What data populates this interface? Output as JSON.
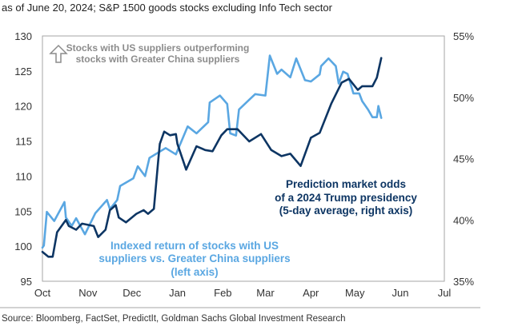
{
  "chart_data": {
    "type": "line",
    "title": "as of June 20, 2024; S&P 1500 goods stocks excluding Info Tech sector",
    "source": "Source: Bloomberg, FactSet, PredictIt, Goldman Sachs Global Investment Research",
    "x_unit": "days since Oct 1, 2023",
    "xlim": [
      0,
      274
    ],
    "x_ticks": [
      {
        "label": "Oct",
        "day": 0
      },
      {
        "label": "Nov",
        "day": 31
      },
      {
        "label": "Dec",
        "day": 61
      },
      {
        "label": "Jan",
        "day": 92
      },
      {
        "label": "Feb",
        "day": 123
      },
      {
        "label": "Mar",
        "day": 152
      },
      {
        "label": "Apr",
        "day": 183
      },
      {
        "label": "May",
        "day": 213
      },
      {
        "label": "Jun",
        "day": 244
      },
      {
        "label": "Jul",
        "day": 274
      }
    ],
    "left_axis": {
      "ylim": [
        95,
        130
      ],
      "ticks": [
        "95",
        "100",
        "105",
        "110",
        "115",
        "120",
        "125",
        "130"
      ],
      "tick_values": [
        95,
        100,
        105,
        110,
        115,
        120,
        125,
        130
      ]
    },
    "right_axis": {
      "ylim": [
        35,
        55
      ],
      "ticks": [
        "35%",
        "40%",
        "45%",
        "50%",
        "55%"
      ],
      "tick_values": [
        35,
        40,
        45,
        50,
        55
      ]
    },
    "grid": false,
    "annotations": {
      "up_arrow": [
        "Stocks with US suppliers outperforming",
        "stocks with Greater China suppliers"
      ],
      "dark": [
        "Prediction market odds",
        "of a 2024 Trump presidency",
        "(5-day average, right axis)"
      ],
      "light": [
        "Indexed return of stocks with US",
        "suppliers vs. Greater China suppliers",
        "(left axis)"
      ]
    },
    "series": [
      {
        "name": "Indexed return of stocks with US suppliers vs. Greater China suppliers (left axis)",
        "axis": "left",
        "color": "#5aa7e2",
        "x": [
          0,
          1,
          3,
          8,
          15,
          16,
          20,
          23,
          29,
          36,
          44,
          46,
          51,
          53,
          62,
          65,
          70,
          73,
          84,
          91,
          99,
          105,
          113,
          114,
          121,
          126,
          128,
          132,
          134,
          141,
          145,
          152,
          155,
          160,
          163,
          169,
          173,
          179,
          183,
          189,
          190,
          195,
          200,
          202,
          205,
          208,
          212,
          216,
          218,
          222,
          225,
          228,
          229,
          231
        ],
        "y": [
          99.8,
          100.1,
          104.9,
          103.6,
          106.3,
          104.1,
          102.9,
          104.0,
          101.7,
          104.7,
          106.6,
          105.3,
          106.6,
          108.6,
          109.7,
          111.4,
          110.0,
          112.6,
          114.0,
          113.1,
          117.1,
          116.1,
          117.7,
          120.5,
          121.5,
          120.3,
          116.1,
          115.8,
          119.5,
          120.9,
          121.7,
          121.5,
          127.2,
          124.6,
          125.2,
          124.1,
          126.8,
          123.7,
          123.5,
          124.5,
          125.7,
          126.8,
          125.7,
          123.2,
          124.9,
          124.6,
          121.8,
          121.8,
          120.7,
          119.5,
          118.4,
          118.4,
          120.0,
          118.3
        ]
      },
      {
        "name": "Prediction market odds of a 2024 Trump presidency (5-day average, right axis)",
        "axis": "right",
        "color": "#0d3563",
        "x": [
          0,
          4,
          7,
          10,
          16,
          18,
          23,
          27,
          35,
          38,
          43,
          46,
          50,
          52,
          57,
          64,
          69,
          72,
          76,
          79,
          80,
          83,
          87,
          91,
          92,
          98,
          105,
          111,
          116,
          122,
          126,
          133,
          141,
          149,
          156,
          163,
          169,
          176,
          183,
          189,
          197,
          204,
          209,
          215,
          218,
          225,
          228,
          231
        ],
        "y": [
          37.4,
          37.0,
          37.0,
          39.0,
          40.0,
          39.5,
          39.2,
          39.7,
          39.5,
          38.6,
          39.2,
          40.8,
          41.2,
          40.2,
          39.8,
          40.5,
          40.8,
          40.5,
          40.9,
          44.9,
          46.2,
          47.2,
          46.9,
          47.0,
          46.2,
          44.1,
          46.0,
          45.7,
          45.6,
          46.9,
          47.4,
          47.4,
          46.4,
          47.0,
          45.7,
          45.2,
          45.4,
          44.4,
          46.7,
          47.1,
          49.5,
          51.2,
          51.5,
          50.6,
          50.9,
          50.9,
          51.6,
          53.2
        ]
      }
    ]
  }
}
